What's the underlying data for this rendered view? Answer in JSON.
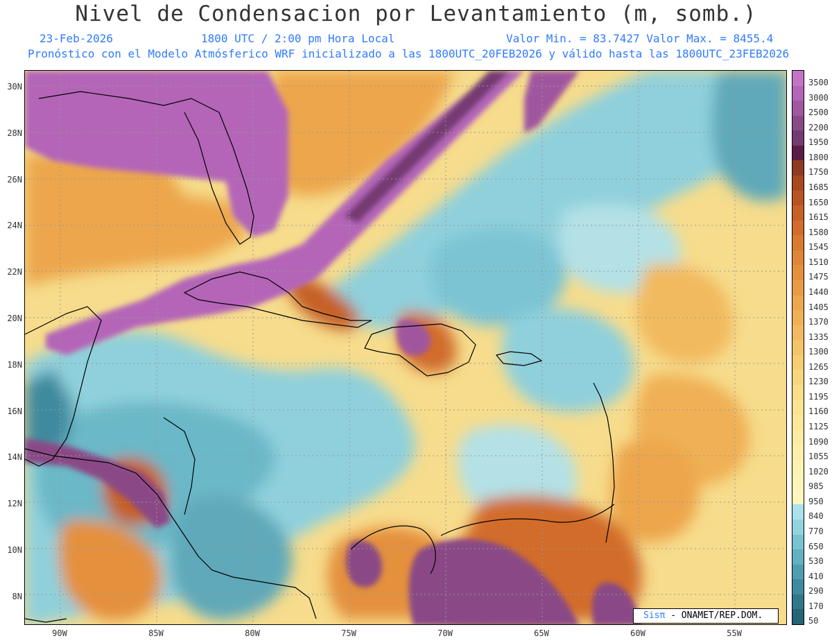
{
  "header": {
    "title": "Nivel de Condensacion por Levantamiento (m, somb.)",
    "date": "23-Feb-2026",
    "time": "1800 UTC / 2:00 pm Hora Local",
    "minmax": "Valor Min. = 83.7427  Valor Max. = 8455.4",
    "model": "Pronóstico con el Modelo Atmósferico WRF inicializado a las 1800UTC_20FEB2026 y válido hasta las  1800UTC_23FEB2026"
  },
  "map": {
    "lat_labels": [
      "30N",
      "28N",
      "26N",
      "24N",
      "22N",
      "20N",
      "18N",
      "16N",
      "14N",
      "12N",
      "10N",
      "8N"
    ],
    "lon_labels": [
      "90W",
      "85W",
      "80W",
      "75W",
      "70W",
      "65W",
      "60W",
      "55W"
    ]
  },
  "colorbar": {
    "labels": [
      "3500",
      "3000",
      "2500",
      "2200",
      "1950",
      "1800",
      "1750",
      "1685",
      "1650",
      "1615",
      "1580",
      "1545",
      "1510",
      "1475",
      "1440",
      "1405",
      "1370",
      "1335",
      "1300",
      "1265",
      "1230",
      "1195",
      "1160",
      "1125",
      "1090",
      "1055",
      "1020",
      "985",
      "950",
      "840",
      "770",
      "650",
      "530",
      "410",
      "290",
      "170",
      "50"
    ],
    "colors": [
      "#c474c6",
      "#b465b8",
      "#a0579f",
      "#8a4886",
      "#743b72",
      "#5a1e44",
      "#8e3a23",
      "#a8481f",
      "#b85423",
      "#c66128",
      "#d26c2c",
      "#d87a30",
      "#df8537",
      "#e4903d",
      "#e99b44",
      "#eda64c",
      "#f0b055",
      "#f2ba5e",
      "#f4c468",
      "#f6cd72",
      "#f8d67d",
      "#f9dd87",
      "#fae391",
      "#fbe89a",
      "#fcecA3",
      "#fdefaa",
      "#fdf2b2",
      "#fef4b8",
      "#fef6be",
      "#a9e2ec",
      "#92d3e0",
      "#78c2d2",
      "#62b0c2",
      "#4f9db1",
      "#3f8a9f",
      "#32778c",
      "#266478"
    ]
  },
  "logo": {
    "sis": "Sisπ",
    "org": " - ONAMET/REP.DOM."
  }
}
